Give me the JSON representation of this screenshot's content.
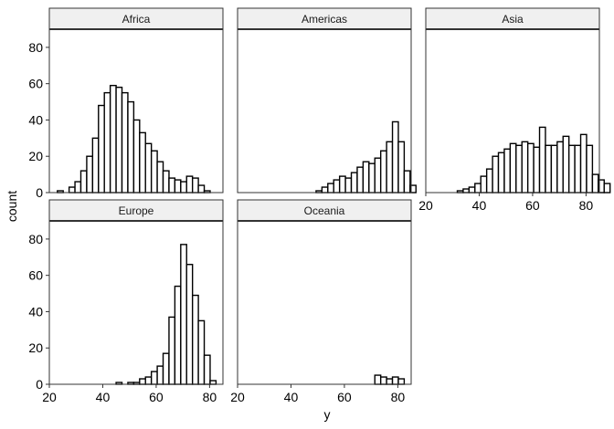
{
  "chart_data": {
    "type": "bar",
    "variant": "faceted-histogram",
    "xlabel": "y",
    "ylabel": "count",
    "xlim": [
      20,
      85
    ],
    "ylim": [
      0,
      90
    ],
    "x_ticks": [
      20,
      40,
      60,
      80
    ],
    "y_ticks": [
      0,
      20,
      40,
      60,
      80
    ],
    "bin_width": 2.2,
    "bin_start": 23,
    "bar_fill": "#ffffff",
    "bar_stroke": "#000000",
    "strip_fill": "#f0f0f0",
    "grid": false,
    "facets": [
      {
        "label": "Africa",
        "counts": [
          1,
          0,
          3,
          6,
          12,
          20,
          30,
          48,
          55,
          59,
          58,
          55,
          50,
          40,
          33,
          27,
          23,
          17,
          12,
          8,
          7,
          6,
          9,
          8,
          4,
          1,
          0,
          0,
          0,
          0
        ]
      },
      {
        "label": "Americas",
        "counts": [
          0,
          0,
          0,
          0,
          0,
          0,
          0,
          0,
          0,
          0,
          0,
          0,
          1,
          3,
          5,
          7,
          9,
          8,
          11,
          14,
          17,
          16,
          19,
          23,
          28,
          39,
          28,
          12,
          4,
          0
        ]
      },
      {
        "label": "Asia",
        "counts": [
          0,
          0,
          0,
          0,
          1,
          2,
          3,
          5,
          9,
          13,
          20,
          22,
          24,
          27,
          26,
          28,
          27,
          25,
          36,
          26,
          26,
          28,
          31,
          26,
          26,
          32,
          26,
          10,
          7,
          5
        ]
      },
      {
        "label": "Europe",
        "counts": [
          0,
          0,
          0,
          0,
          0,
          0,
          0,
          0,
          0,
          0,
          1,
          0,
          1,
          1,
          3,
          4,
          7,
          10,
          17,
          37,
          54,
          77,
          66,
          49,
          35,
          16,
          2,
          0,
          0,
          0
        ]
      },
      {
        "label": "Oceania",
        "counts": [
          0,
          0,
          0,
          0,
          0,
          0,
          0,
          0,
          0,
          0,
          0,
          0,
          0,
          0,
          0,
          0,
          0,
          0,
          0,
          0,
          0,
          0,
          5,
          4,
          3,
          4,
          3,
          0,
          0,
          0
        ]
      }
    ]
  }
}
